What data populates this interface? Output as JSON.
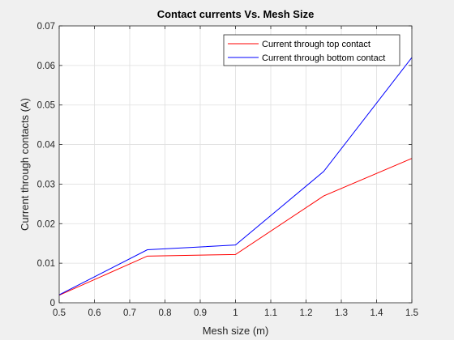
{
  "chart_data": {
    "type": "line",
    "title": "Contact currents Vs. Mesh Size",
    "xlabel": "Mesh size (m)",
    "ylabel": "Current through contacts (A)",
    "xlim": [
      0.5,
      1.5
    ],
    "ylim": [
      0,
      0.07
    ],
    "xticks": [
      "0.5",
      "0.6",
      "0.7",
      "0.8",
      "0.9",
      "1",
      "1.1",
      "1.2",
      "1.3",
      "1.4",
      "1.5"
    ],
    "yticks": [
      "0",
      "0.01",
      "0.02",
      "0.03",
      "0.04",
      "0.05",
      "0.06",
      "0.07"
    ],
    "grid": true,
    "legend_location": "top-right",
    "x": [
      0.5,
      0.75,
      1.0,
      1.25,
      1.5
    ],
    "series": [
      {
        "name": "Current through top contact",
        "color": "#ff0000",
        "values": [
          0.0019,
          0.0118,
          0.0122,
          0.027,
          0.0365
        ]
      },
      {
        "name": "Current through bottom contact",
        "color": "#0000ff",
        "values": [
          0.002,
          0.0134,
          0.0146,
          0.0332,
          0.062
        ]
      }
    ]
  }
}
